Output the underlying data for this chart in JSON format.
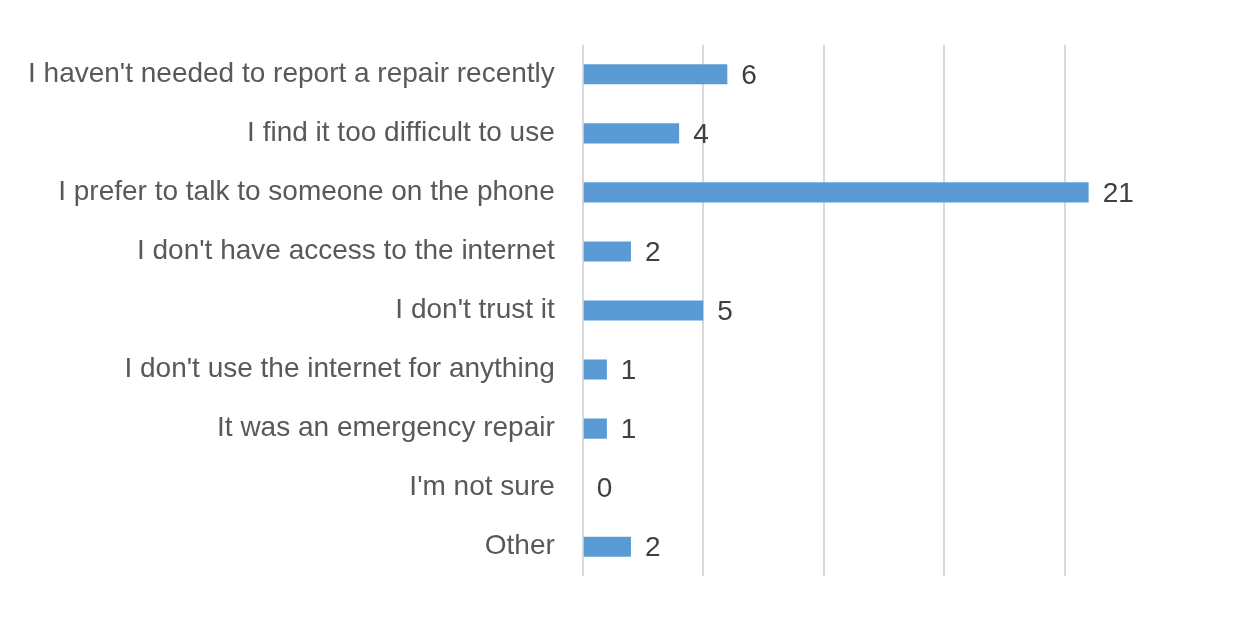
{
  "chart_data": {
    "type": "bar",
    "orientation": "horizontal",
    "categories": [
      "I haven't needed to report a repair recently",
      "I find it too difficult to use",
      "I prefer to talk to someone on the phone",
      "I don't have access to the internet",
      "I don't trust it",
      "I don't use the internet for anything",
      "It was an emergency repair",
      "I'm not sure",
      "Other"
    ],
    "values": [
      6,
      4,
      21,
      2,
      5,
      1,
      1,
      0,
      2
    ],
    "color": "#5b9bd5",
    "xticks": [
      {
        "value": 0,
        "label": null
      },
      {
        "value": 5,
        "label": null
      },
      {
        "value": 10,
        "label": null
      },
      {
        "value": 15,
        "label": null
      },
      {
        "value": 20,
        "label": null
      }
    ],
    "tick_labels": "y",
    "grid": "x",
    "data_labels": true
  }
}
